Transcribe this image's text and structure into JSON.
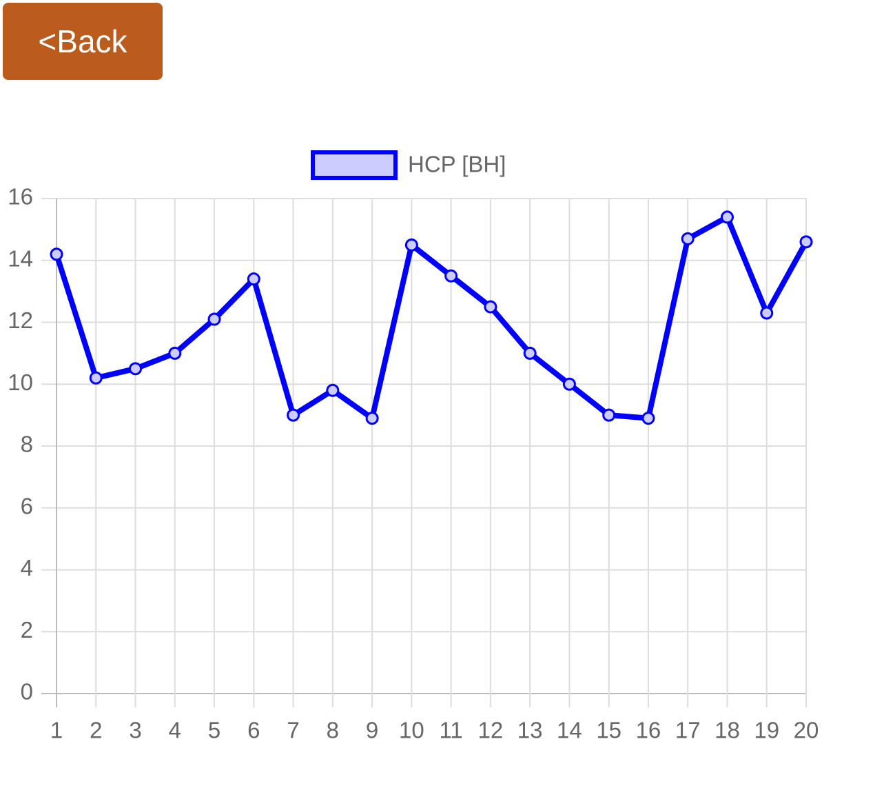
{
  "back_button": {
    "label": "<Back"
  },
  "chart_data": {
    "type": "line",
    "categories": [
      "1",
      "2",
      "3",
      "4",
      "5",
      "6",
      "7",
      "8",
      "9",
      "10",
      "11",
      "12",
      "13",
      "14",
      "15",
      "16",
      "17",
      "18",
      "19",
      "20"
    ],
    "series": [
      {
        "name": "HCP [BH]",
        "color": "#0000ff",
        "fill_color": "rgba(0,0,255,0.2)",
        "values": [
          14.2,
          10.2,
          10.5,
          11,
          12.1,
          13.4,
          9,
          9.8,
          8.9,
          14.5,
          13.5,
          12.5,
          11,
          10,
          9,
          8.9,
          14.7,
          15.4,
          12.3,
          14.6
        ]
      }
    ],
    "ylim": [
      0,
      16
    ],
    "yticks": [
      0,
      2,
      4,
      6,
      8,
      10,
      12,
      14,
      16
    ],
    "grid": true,
    "legend": "top"
  }
}
